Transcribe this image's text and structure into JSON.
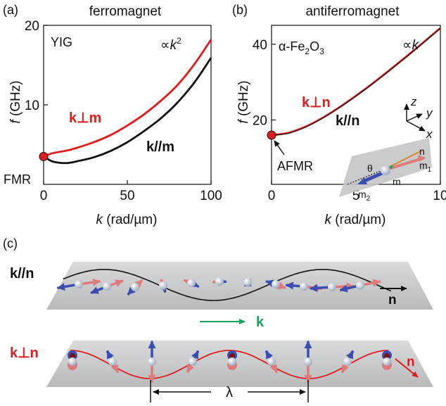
{
  "colors": {
    "red": "#e11b1b",
    "black": "#111111",
    "blue_arrow": "#3b4db0",
    "pink_arrow": "#e07a7a",
    "green_arrow": "#17a05a",
    "plane": "#c9cacb"
  },
  "panel_a": {
    "tag": "(a)",
    "title": "ferromagnet",
    "material": "YIG",
    "scaling_prefix": "∝",
    "scaling_base": "k",
    "scaling_exp": "2",
    "label_perp": "k⊥m",
    "label_par": "k//m",
    "point_label": "FMR"
  },
  "panel_b": {
    "tag": "(b)",
    "title": "antiferromagnet",
    "material_prefix": "α-Fe",
    "material_sub1": "2",
    "material_mid": "O",
    "material_sub2": "3",
    "scaling_prefix": "∝",
    "scaling_base": "k",
    "label_perp": "k⊥n",
    "label_par": "k//n",
    "point_label": "AFMR",
    "inset": {
      "axis_x": "x",
      "axis_y": "y",
      "axis_z": "z",
      "n": "n",
      "m1": "m",
      "m1_sub": "1",
      "m": "m",
      "m2": "m",
      "m2_sub": "2",
      "theta": "θ"
    }
  },
  "panel_c": {
    "tag": "(c)",
    "row1_label": "k//n",
    "row1_n": "n",
    "k_label": "k",
    "row2_label": "k⊥n",
    "row2_n": "n",
    "lambda": "λ"
  },
  "chart_data": [
    {
      "type": "line",
      "title": "ferromagnet",
      "xlabel_italic": "k",
      "xlabel_unit": "(rad/µm)",
      "ylabel_italic": "f",
      "ylabel_unit": "(GHz)",
      "xlim": [
        0,
        100
      ],
      "ylim": [
        0,
        20
      ],
      "xticks": [
        0,
        50,
        100
      ],
      "yticks": [
        10,
        20
      ],
      "series": [
        {
          "name": "k⊥m",
          "color": "#e11b1b",
          "x": [
            0,
            5,
            10,
            15,
            20,
            30,
            40,
            50,
            60,
            70,
            80,
            90,
            100
          ],
          "y": [
            3.5,
            3.9,
            4.1,
            4.3,
            4.6,
            5.3,
            6.2,
            7.4,
            8.8,
            10.5,
            12.5,
            15.1,
            18.2
          ]
        },
        {
          "name": "k//m",
          "color": "#111111",
          "x": [
            0,
            5,
            10,
            15,
            20,
            30,
            40,
            50,
            60,
            70,
            80,
            90,
            100
          ],
          "y": [
            3.5,
            2.9,
            2.7,
            2.7,
            2.9,
            3.4,
            4.2,
            5.3,
            6.7,
            8.3,
            10.3,
            12.8,
            15.9
          ]
        }
      ],
      "markers": [
        {
          "x": 0,
          "y": 3.5,
          "label": "FMR"
        }
      ]
    },
    {
      "type": "line",
      "title": "antiferromagnet",
      "xlabel_italic": "k",
      "xlabel_unit": "(rad/µm)",
      "ylabel_italic": "f",
      "ylabel_unit": "(GHz)",
      "xlim": [
        0,
        10
      ],
      "ylim": [
        3,
        45
      ],
      "xticks": [
        0,
        5,
        10
      ],
      "yticks": [
        20,
        40
      ],
      "series": [
        {
          "name": "k⊥n",
          "color": "#e11b1b",
          "x": [
            0,
            1,
            2,
            3,
            4,
            5,
            6,
            7,
            8,
            9,
            10
          ],
          "y": [
            16.0,
            16.6,
            18.2,
            20.5,
            23.3,
            26.4,
            29.7,
            33.2,
            36.8,
            40.5,
            44.3
          ]
        },
        {
          "name": "k//n",
          "color": "#111111",
          "x": [
            0,
            1,
            2,
            3,
            4,
            5,
            6,
            7,
            8,
            9,
            10
          ],
          "y": [
            15.9,
            16.5,
            18.1,
            20.4,
            23.2,
            26.3,
            29.6,
            33.1,
            36.7,
            40.4,
            44.2
          ]
        }
      ],
      "markers": [
        {
          "x": 0,
          "y": 16.0,
          "label": "AFMR"
        }
      ]
    }
  ]
}
